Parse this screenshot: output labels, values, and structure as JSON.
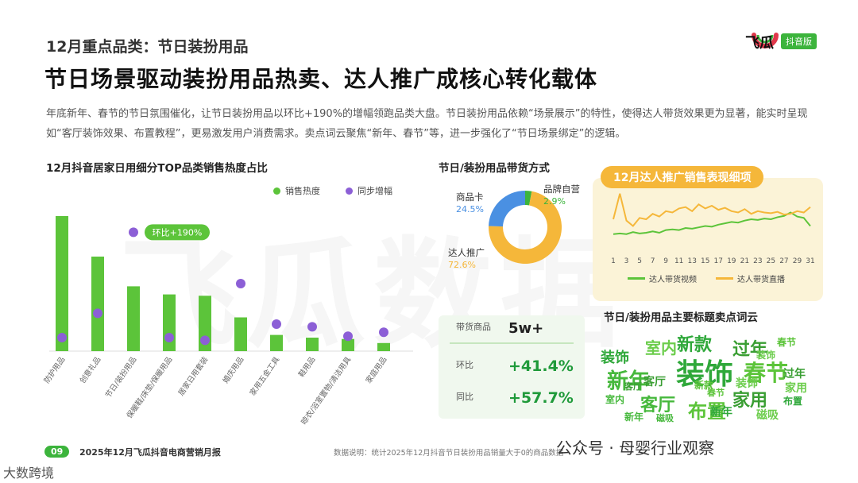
{
  "header": {
    "kicker": "12月重点品类：节日装扮用品",
    "headline": "节日场景驱动装扮用品热卖、达人推广成核心转化载体",
    "intro": "年底新年、春节的节日氛围催化，让节日装扮用品以环比+190%的增幅领跑品类大盘。节日装扮用品依赖“场景展示”的特性，使得达人带货效果更为显著，能实时呈现如“客厅装饰效果、布置教程”，更易激发用户消费需求。卖点词云聚焦“新年、春节”等，进一步强化了“节日场景绑定”的逻辑。"
  },
  "logo": {
    "name": "飞瓜",
    "badge": "抖音版",
    "brand_color": "#3cb43c",
    "icon": "melon-logo-icon"
  },
  "watermark": "飞瓜数据",
  "bar_section": {
    "title": "12月抖音居家日用细分TOP品类销售热度占比",
    "legend": [
      "销售热度",
      "同步增幅"
    ],
    "annotation": "环比+190%"
  },
  "channel_section": {
    "title": "节日/装扮用品带货方式"
  },
  "stats": {
    "rows": [
      {
        "label": "带货商品",
        "value": "5w+"
      },
      {
        "label": "环比",
        "value": "+41.4%"
      },
      {
        "label": "同比",
        "value": "+57.7%"
      }
    ]
  },
  "line_section": {
    "title": "12月达人推广销售表现细项",
    "legend": [
      "达人带货视频",
      "达人带货直播"
    ]
  },
  "wordcloud": {
    "title": "节日/装扮用品主要标题卖点词云",
    "words": [
      "装饰",
      "新年",
      "春节",
      "过年",
      "室内",
      "新款",
      "客厅",
      "布置",
      "家用",
      "磁吸",
      "装饰",
      "新年",
      "春节",
      "过年",
      "家用",
      "布置",
      "室内",
      "新款",
      "客厅",
      "装饰",
      "新年",
      "磁吸",
      "春节",
      "客厅",
      "装饰"
    ]
  },
  "footer": {
    "page": "09",
    "report": "2025年12月飞瓜抖音电商营销月报",
    "note": "数据说明：统计2025年12月抖音节日装扮用品销量大于0的商品数据",
    "wechat": "公众号 · 母婴行业观察",
    "brand_mark": "大数跨境"
  },
  "chart_data": [
    {
      "type": "bar",
      "title": "12月抖音居家日用细分TOP品类销售热度占比",
      "categories": [
        "防护用品",
        "创意礼品",
        "节日/装扮用品",
        "保暖鞋/床垫/保暖用品",
        "居家日用套装",
        "婚庆用品",
        "家用五金工具",
        "鞋用品",
        "晾衣/浴室置物/清洁用具",
        "家庭用品"
      ],
      "series": [
        {
          "name": "销售热度",
          "values": [
            100,
            70,
            48,
            42,
            41,
            25,
            12,
            10,
            9,
            6
          ]
        },
        {
          "name": "同步增幅",
          "values": [
            10,
            28,
            88,
            10,
            8,
            50,
            20,
            18,
            11,
            14
          ]
        }
      ],
      "color_bar": "#5cc43a",
      "color_dot": "#8c5fd6"
    },
    {
      "type": "pie",
      "title": "节日/装扮用品带货方式",
      "labels": [
        "商品卡",
        "品牌自营",
        "达人推广"
      ],
      "values": [
        24.5,
        2.9,
        72.6
      ],
      "display": [
        "24.5%",
        "2.9%",
        "72.6%"
      ],
      "colors": [
        "#4a90e2",
        "#3cb43c",
        "#f5b73a"
      ]
    },
    {
      "type": "line",
      "title": "12月达人推广销售表现细项",
      "x": [
        1,
        2,
        3,
        4,
        5,
        6,
        7,
        8,
        9,
        10,
        11,
        12,
        13,
        14,
        15,
        16,
        17,
        18,
        19,
        20,
        21,
        22,
        23,
        24,
        25,
        26,
        27,
        28,
        29,
        30,
        31
      ],
      "x_ticks": [
        "1",
        "3",
        "5",
        "7",
        "9",
        "11",
        "13",
        "15",
        "17",
        "19",
        "21",
        "23",
        "25",
        "27",
        "29",
        "31"
      ],
      "series": [
        {
          "name": "达人带货视频",
          "values": [
            18,
            19,
            18,
            21,
            19,
            20,
            22,
            20,
            24,
            25,
            24,
            27,
            26,
            28,
            30,
            29,
            32,
            34,
            36,
            35,
            38,
            40,
            39,
            41,
            40,
            43,
            45,
            50,
            44,
            42,
            30
          ],
          "color": "#5cc43a"
        },
        {
          "name": "达人带货直播",
          "values": [
            40,
            78,
            38,
            30,
            42,
            40,
            48,
            44,
            52,
            50,
            56,
            58,
            52,
            62,
            56,
            60,
            54,
            57,
            52,
            50,
            55,
            48,
            52,
            50,
            49,
            51,
            47,
            48,
            52,
            50,
            58
          ],
          "color": "#f5b73a"
        }
      ]
    }
  ]
}
